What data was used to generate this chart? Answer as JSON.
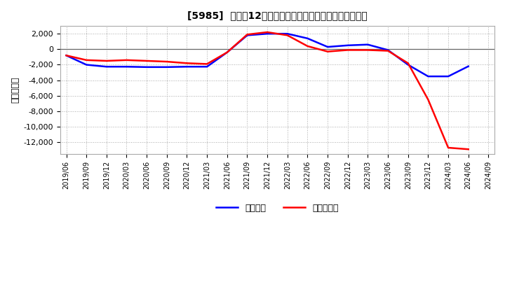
{
  "title": "[5985]  利益だ12か月移動合計の対前年同期増減額の推移",
  "ylabel": "（百万円）",
  "background_color": "#ffffff",
  "plot_bg_color": "#ffffff",
  "grid_color": "#aaaaaa",
  "ylim": [
    -13500,
    3000
  ],
  "yticks": [
    2000,
    0,
    -2000,
    -4000,
    -6000,
    -8000,
    -10000,
    -12000
  ],
  "legend_labels": [
    "経常利益",
    "当期純利益"
  ],
  "line_colors": [
    "#0000ff",
    "#ff0000"
  ],
  "dates": [
    "2019/06",
    "2019/09",
    "2019/12",
    "2020/03",
    "2020/06",
    "2020/09",
    "2020/12",
    "2021/03",
    "2021/06",
    "2021/09",
    "2021/12",
    "2022/03",
    "2022/06",
    "2022/09",
    "2022/12",
    "2023/03",
    "2023/06",
    "2023/09",
    "2023/12",
    "2024/03",
    "2024/06",
    "2024/09"
  ],
  "operating_profit": [
    -800,
    -2000,
    -2250,
    -2250,
    -2300,
    -2300,
    -2250,
    -2250,
    -400,
    1800,
    2000,
    2000,
    1400,
    300,
    500,
    600,
    -100,
    -2000,
    -3500,
    -3500,
    -2200,
    null
  ],
  "net_profit": [
    -800,
    -1400,
    -1500,
    -1400,
    -1500,
    -1600,
    -1800,
    -1900,
    -400,
    1900,
    2200,
    1800,
    400,
    -300,
    -100,
    -100,
    -200,
    -1800,
    -6500,
    -12700,
    -12900,
    null
  ],
  "xtick_labels": [
    "2019/06",
    "2019/09",
    "2019/12",
    "2020/03",
    "2020/06",
    "2020/09",
    "2020/12",
    "2021/03",
    "2021/06",
    "2021/09",
    "2021/12",
    "2022/03",
    "2022/06",
    "2022/09",
    "2022/12",
    "2023/03",
    "2023/06",
    "2023/09",
    "2023/12",
    "2024/03",
    "2024/06",
    "2024/09"
  ]
}
